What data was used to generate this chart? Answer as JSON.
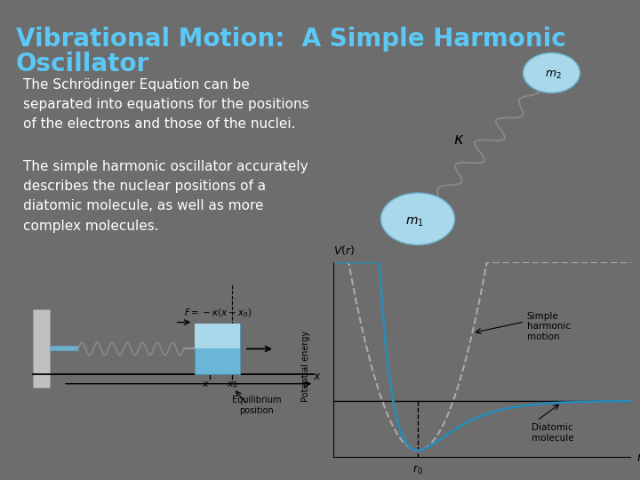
{
  "background_color": "#6d6d6d",
  "title_line1": "Vibrational Motion:  A Simple Harmonic",
  "title_line2": "Oscillator",
  "title_color": "#5bc8f5",
  "title_fontsize": 20,
  "body_text_color": "#ffffff",
  "body_fontsize": 11,
  "para1": "The Schrödinger Equation can be\nseparated into equations for the positions\nof the electrons and those of the nuclei.",
  "para2": "The simple harmonic oscillator accurately\ndescribes the nuclear positions of a\ndiatomic molecule, as well as more\ncomplex molecules.",
  "white_bg": "#ffffff",
  "mass_color": "#a8d8ea",
  "plot_line_color": "#2a8ab5",
  "spring_gray": "#aaaaaa",
  "wall_gray": "#c0c0c0"
}
